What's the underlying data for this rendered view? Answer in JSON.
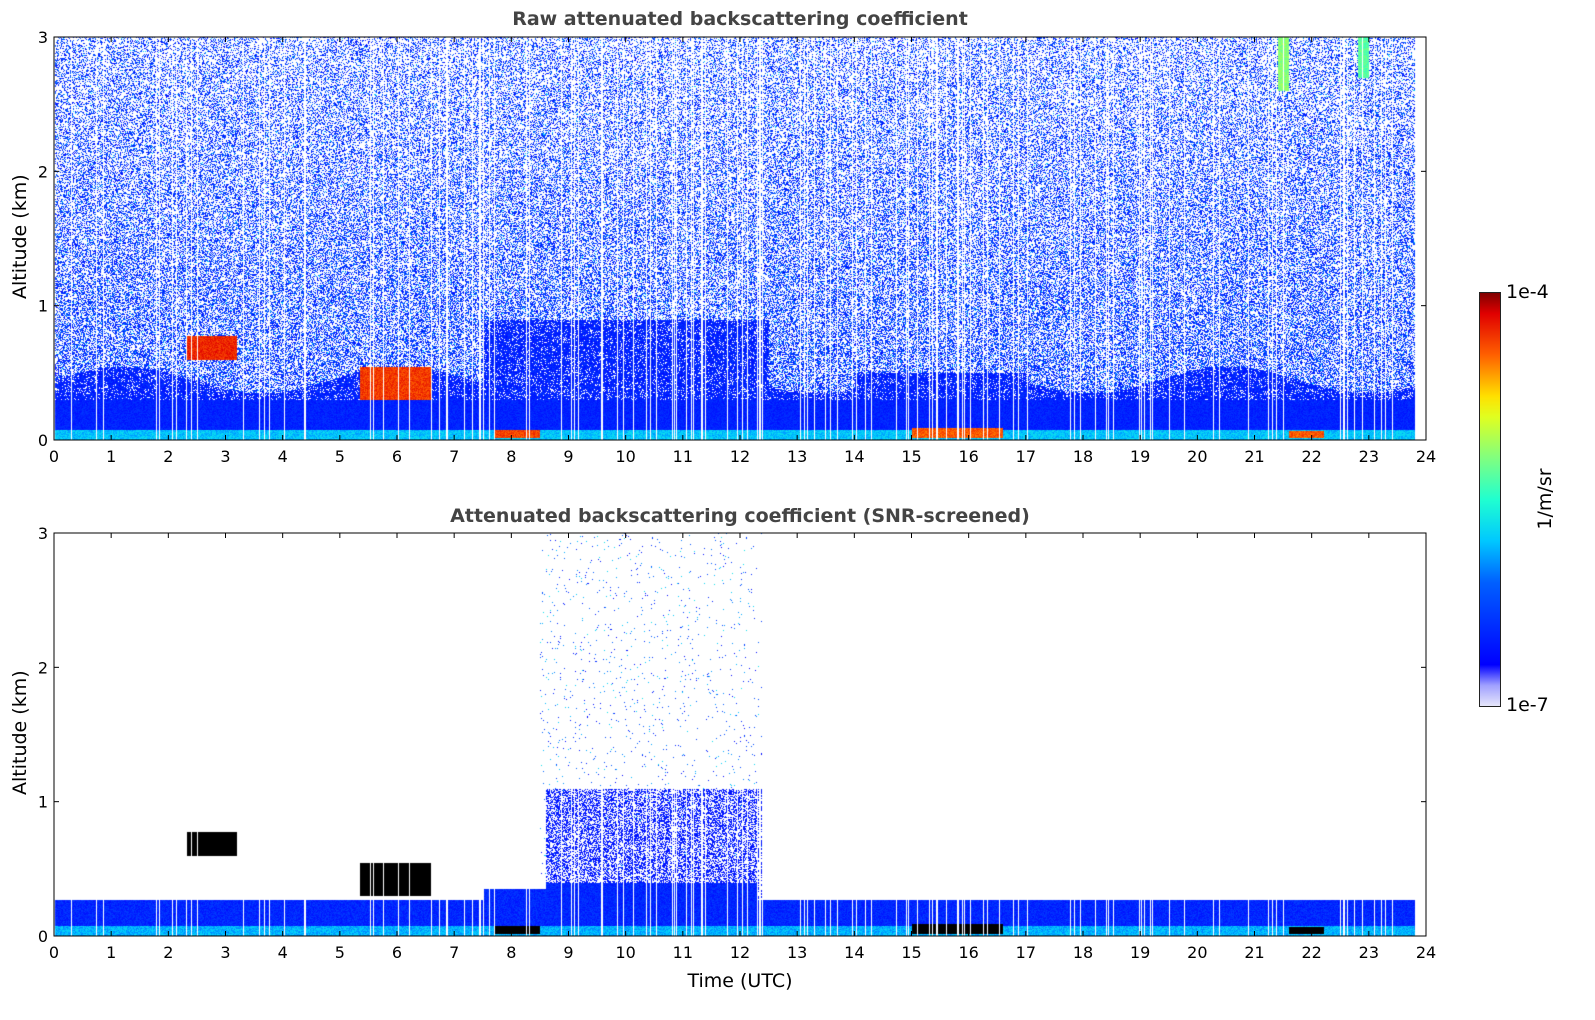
{
  "chart_data": [
    {
      "type": "heatmap",
      "title": "Raw attenuated backscattering coefficient",
      "xlabel": "",
      "ylabel": "Altitude (km)",
      "xlim": [
        0,
        24
      ],
      "ylim": [
        0,
        3
      ],
      "xticks": [
        "0",
        "1",
        "2",
        "3",
        "4",
        "5",
        "6",
        "7",
        "8",
        "9",
        "10",
        "11",
        "12",
        "13",
        "14",
        "15",
        "16",
        "17",
        "18",
        "19",
        "20",
        "21",
        "22",
        "23",
        "24"
      ],
      "yticks": [
        "0",
        "1",
        "2",
        "3"
      ],
      "screened": false
    },
    {
      "type": "heatmap",
      "title": "Attenuated backscattering coefficient (SNR-screened)",
      "xlabel": "Time (UTC)",
      "ylabel": "Altitude (km)",
      "xlim": [
        0,
        24
      ],
      "ylim": [
        0,
        3
      ],
      "xticks": [
        "0",
        "1",
        "2",
        "3",
        "4",
        "5",
        "6",
        "7",
        "8",
        "9",
        "10",
        "11",
        "12",
        "13",
        "14",
        "15",
        "16",
        "17",
        "18",
        "19",
        "20",
        "21",
        "22",
        "23",
        "24"
      ],
      "yticks": [
        "0",
        "1",
        "2",
        "3"
      ],
      "screened": true
    }
  ],
  "features": [
    {
      "t": [
        2.3,
        3.2
      ],
      "z": [
        0.6,
        0.78
      ],
      "level": 0.95
    },
    {
      "t": [
        5.35,
        6.6
      ],
      "z": [
        0.3,
        0.55
      ],
      "level": 0.93
    },
    {
      "t": [
        7.7,
        8.5
      ],
      "z": [
        0.02,
        0.08
      ],
      "level": 0.92
    },
    {
      "t": [
        15.0,
        16.6
      ],
      "z": [
        0.02,
        0.09
      ],
      "level": 0.9
    },
    {
      "t": [
        21.6,
        22.2
      ],
      "z": [
        0.02,
        0.07
      ],
      "level": 0.9
    },
    {
      "t": [
        21.4,
        21.6
      ],
      "z": [
        2.6,
        3.0
      ],
      "level": 0.65
    },
    {
      "t": [
        22.8,
        23.0
      ],
      "z": [
        2.7,
        3.0
      ],
      "level": 0.6
    }
  ],
  "colorbar": {
    "label": "1/m/sr",
    "max_label": "1e-4",
    "min_label": "1e-7",
    "scale": "log",
    "range": [
      1e-07,
      0.0001
    ]
  }
}
